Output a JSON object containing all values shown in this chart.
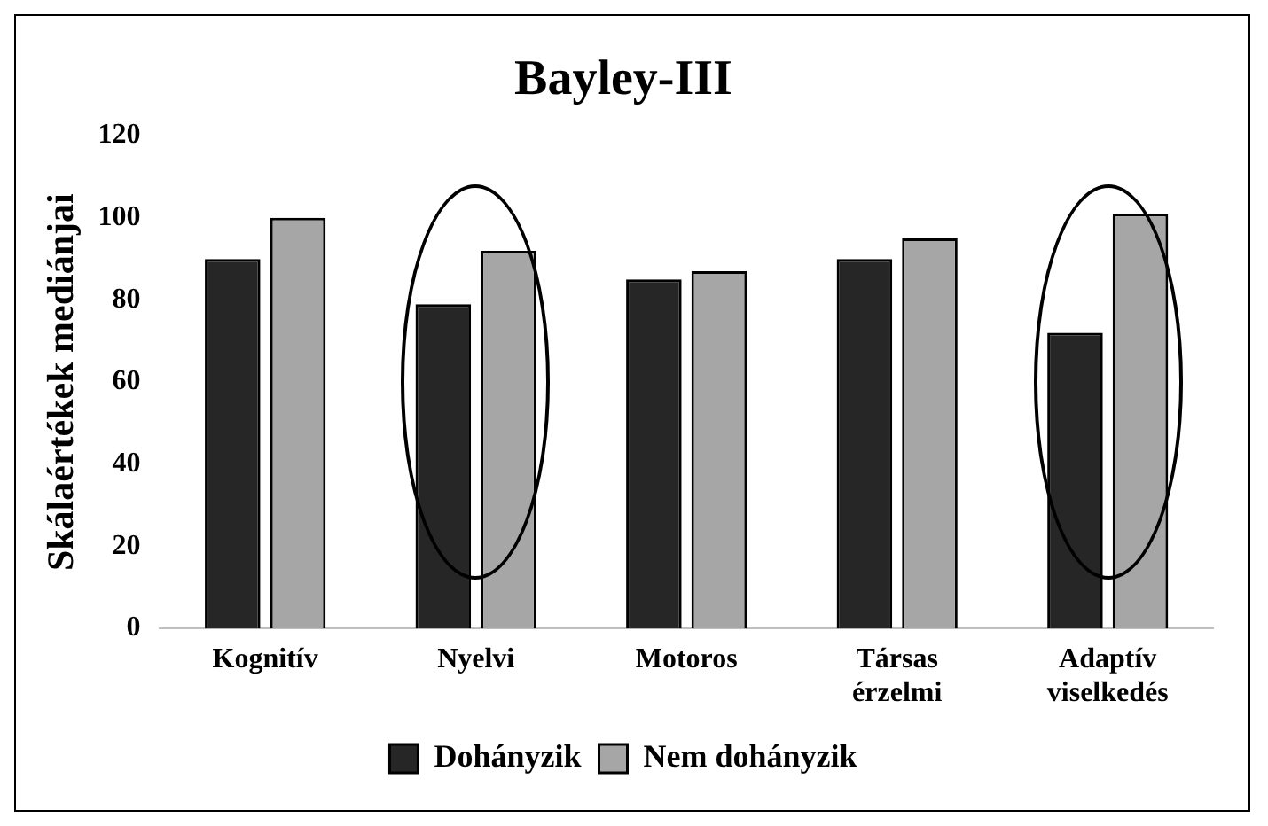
{
  "chart_data": {
    "type": "bar",
    "title": "Bayley-III",
    "ylabel": "Skálaértékek mediánjai",
    "categories": [
      "Kognitív",
      "Nyelvi",
      "Motoros",
      "Társas érzelmi",
      "Adaptív viselkedés"
    ],
    "series": [
      {
        "name": "Dohányzik",
        "color": "#262626",
        "values": [
          90,
          79,
          85,
          90,
          72
        ]
      },
      {
        "name": "Nem dohányzik",
        "color": "#a6a6a6",
        "values": [
          100,
          92,
          87,
          95,
          101
        ]
      }
    ],
    "ylim": [
      0,
      120
    ],
    "yticks": [
      0,
      20,
      40,
      60,
      80,
      100,
      120
    ],
    "grid": false,
    "legend": "bottom"
  }
}
